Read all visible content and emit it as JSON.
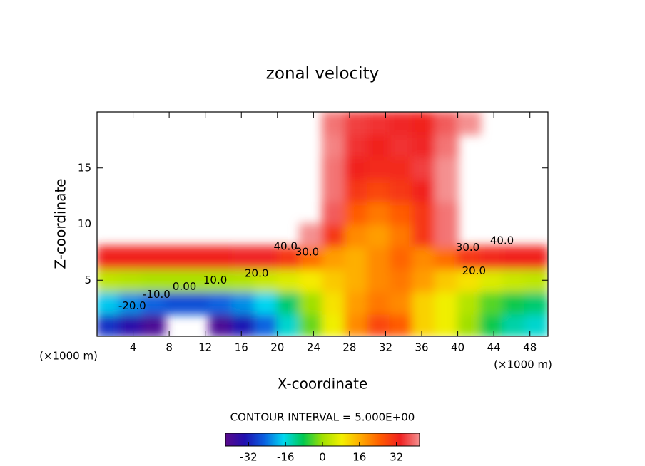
{
  "chart_data": {
    "type": "contour",
    "title": "zonal velocity",
    "xlabel": "X-coordinate",
    "ylabel": "Z-coordinate",
    "x_unit": "(×1000 m)",
    "xlim": [
      0,
      50
    ],
    "ylim": [
      0,
      20
    ],
    "xticks": [
      4,
      8,
      12,
      16,
      20,
      24,
      28,
      32,
      36,
      40,
      44,
      48
    ],
    "yticks": [
      5,
      10,
      15
    ],
    "x": [
      1.25,
      3.75,
      6.25,
      8.75,
      11.25,
      13.75,
      16.25,
      18.75,
      21.25,
      23.75,
      26.25,
      28.75,
      31.25,
      33.75,
      36.25,
      38.75,
      41.25,
      43.75,
      46.25,
      48.75
    ],
    "y": [
      1,
      3,
      5,
      7,
      9,
      11,
      13,
      15,
      17,
      19
    ],
    "z": [
      [
        -30,
        -35,
        -40,
        null,
        null,
        -40,
        -33,
        -25,
        -15,
        -3,
        8,
        20,
        28,
        25,
        12,
        8,
        0,
        -8,
        -13,
        -15
      ],
      [
        -18,
        -22,
        -25,
        -27,
        -27,
        -25,
        -22,
        -17,
        -10,
        0,
        10,
        18,
        22,
        20,
        12,
        8,
        2,
        -4,
        -8,
        -10
      ],
      [
        3,
        2,
        1,
        1,
        1,
        1,
        2,
        4,
        6,
        9,
        13,
        16,
        20,
        22,
        18,
        13,
        10,
        6,
        4,
        3
      ],
      [
        33,
        33,
        33,
        33,
        33,
        33,
        34,
        34,
        30,
        23,
        18,
        16,
        20,
        24,
        20,
        23,
        30,
        32,
        33,
        33
      ],
      [
        null,
        null,
        null,
        null,
        null,
        null,
        null,
        null,
        null,
        42,
        30,
        20,
        18,
        22,
        30,
        40,
        null,
        null,
        null,
        null
      ],
      [
        null,
        null,
        null,
        null,
        null,
        null,
        null,
        null,
        null,
        null,
        38,
        25,
        22,
        25,
        30,
        40,
        null,
        null,
        null,
        null
      ],
      [
        null,
        null,
        null,
        null,
        null,
        null,
        null,
        null,
        null,
        null,
        40,
        30,
        28,
        30,
        33,
        42,
        null,
        null,
        null,
        null
      ],
      [
        null,
        null,
        null,
        null,
        null,
        null,
        null,
        null,
        null,
        null,
        40,
        33,
        32,
        32,
        36,
        44,
        null,
        null,
        null,
        null
      ],
      [
        null,
        null,
        null,
        null,
        null,
        null,
        null,
        null,
        null,
        null,
        41,
        35,
        33,
        35,
        34,
        40,
        null,
        null,
        null,
        null
      ],
      [
        null,
        null,
        null,
        null,
        null,
        null,
        null,
        null,
        null,
        null,
        40,
        36,
        35,
        34,
        33,
        38,
        44,
        null,
        null,
        null
      ]
    ],
    "contour_labels": [
      {
        "value": 40,
        "label": "40.0",
        "x": 20.9,
        "y": 8.0
      },
      {
        "value": 30,
        "label": "30.0",
        "x": 23.3,
        "y": 7.5
      },
      {
        "value": 20,
        "label": "20.0",
        "x": 17.7,
        "y": 5.6
      },
      {
        "value": 10,
        "label": "10.0",
        "x": 13.1,
        "y": 5.0
      },
      {
        "value": 0,
        "label": "0.00",
        "x": 9.7,
        "y": 4.4
      },
      {
        "value": -10,
        "label": "-10.0",
        "x": 6.6,
        "y": 3.7
      },
      {
        "value": -20,
        "label": "-20.0",
        "x": 3.9,
        "y": 2.7
      },
      {
        "value": 40,
        "label": "40.0",
        "x": 44.9,
        "y": 8.5
      },
      {
        "value": 30,
        "label": "30.0",
        "x": 41.1,
        "y": 7.9
      },
      {
        "value": 20,
        "label": "20.0",
        "x": 41.8,
        "y": 5.8
      }
    ],
    "contour_interval": "CONTOUR INTERVAL = 5.000E+00",
    "colormap": [
      "#5a0a8c",
      "#2010b0",
      "#0a60e0",
      "#00d8f0",
      "#00c850",
      "#a0e000",
      "#f4f000",
      "#ffa800",
      "#ff5a00",
      "#f02020",
      "#f49090"
    ],
    "clim": [
      -42,
      42
    ],
    "cticks": [
      -32,
      -16,
      0,
      16,
      32
    ]
  }
}
